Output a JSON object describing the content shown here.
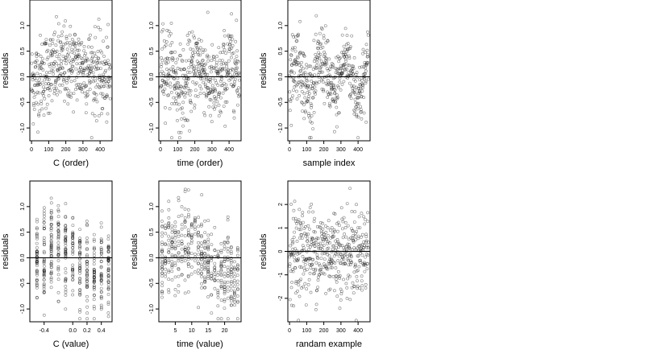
{
  "chart_data": [
    {
      "type": "scatter",
      "xlabel": "C (order)",
      "ylabel": "residuals",
      "xlim": [
        -10,
        470
      ],
      "ylim": [
        -1.25,
        1.5
      ],
      "xticks": [
        0,
        100,
        200,
        300,
        400
      ],
      "xtick_labels": [
        "0",
        "100",
        "200",
        "300",
        "400"
      ],
      "yticks": [
        -1.0,
        -0.5,
        0.0,
        0.5,
        1.0
      ],
      "ytick_labels": [
        "-1.0",
        "-0.5",
        "0.0",
        "0.5",
        "1.0"
      ],
      "hline": 0,
      "pattern": "hump",
      "n_points": 460,
      "x_range": [
        0,
        460
      ]
    },
    {
      "type": "scatter",
      "xlabel": "time (order)",
      "ylabel": "residuals",
      "xlim": [
        -10,
        470
      ],
      "ylim": [
        -1.25,
        1.5
      ],
      "xticks": [
        0,
        100,
        200,
        300,
        400
      ],
      "xtick_labels": [
        "0",
        "100",
        "200",
        "300",
        "400"
      ],
      "yticks": [
        -1.0,
        -0.5,
        0.0,
        0.5,
        1.0
      ],
      "ytick_labels": [
        "-1.0",
        "-0.5",
        "0.0",
        "0.5",
        "1.0"
      ],
      "hline": 0,
      "pattern": "wave",
      "n_points": 460,
      "x_range": [
        0,
        460
      ]
    },
    {
      "type": "scatter",
      "xlabel": "sample index",
      "ylabel": "residuals",
      "xlim": [
        -10,
        470
      ],
      "ylim": [
        -1.25,
        1.5
      ],
      "xticks": [
        0,
        100,
        200,
        300,
        400
      ],
      "xtick_labels": [
        "0",
        "100",
        "200",
        "300",
        "400"
      ],
      "yticks": [
        -1.0,
        -0.5,
        0.0,
        0.5,
        1.0
      ],
      "ytick_labels": [
        "-1.0",
        "-0.5",
        "0.0",
        "0.5",
        "1.0"
      ],
      "hline": 0,
      "pattern": "cycles",
      "n_points": 460,
      "x_range": [
        0,
        460
      ]
    },
    {
      "type": "scatter",
      "xlabel": "C (value)",
      "ylabel": "residuals",
      "xlim": [
        -0.6,
        0.55
      ],
      "ylim": [
        -1.25,
        1.5
      ],
      "xticks": [
        -0.4,
        0.0,
        0.2,
        0.4
      ],
      "xtick_labels": [
        "-0.4",
        "0.0",
        "0.2",
        "0.4"
      ],
      "yticks": [
        -1.0,
        -0.5,
        0.0,
        0.5,
        1.0
      ],
      "ytick_labels": [
        "-1.0",
        "-0.5",
        "0.0",
        "0.5",
        "1.0"
      ],
      "hline": 0,
      "pattern": "columns",
      "columns": [
        -0.5,
        -0.4,
        -0.3,
        -0.2,
        -0.1,
        0.0,
        0.1,
        0.2,
        0.3,
        0.4,
        0.5
      ],
      "n_points": 460
    },
    {
      "type": "scatter",
      "xlabel": "time (value)",
      "ylabel": "residuals",
      "xlim": [
        0,
        25
      ],
      "ylim": [
        -1.25,
        1.5
      ],
      "xticks": [
        5,
        10,
        15,
        20
      ],
      "xtick_labels": [
        "5",
        "10",
        "15",
        "20"
      ],
      "yticks": [
        -1.0,
        -0.5,
        0.0,
        0.5,
        1.0
      ],
      "ytick_labels": [
        "-1.0",
        "-0.5",
        "0.0",
        "0.5",
        "1.0"
      ],
      "hline": 0,
      "pattern": "columns",
      "columns": [
        1,
        2,
        3,
        4,
        5,
        6,
        7,
        8,
        9,
        10,
        11,
        12,
        13,
        14,
        15,
        16,
        17,
        18,
        19,
        20,
        21,
        22,
        23,
        24
      ],
      "n_points": 460
    },
    {
      "type": "scatter",
      "xlabel": "randam example",
      "ylabel": "residuals",
      "xlim": [
        -10,
        470
      ],
      "ylim": [
        -3,
        3
      ],
      "xticks": [
        0,
        100,
        200,
        300,
        400
      ],
      "xtick_labels": [
        "0",
        "100",
        "200",
        "300",
        "400"
      ],
      "yticks": [
        -2,
        -1,
        0,
        1,
        2
      ],
      "ytick_labels": [
        "-2",
        "-1",
        "0",
        "1",
        "2"
      ],
      "hline": 0,
      "pattern": "random",
      "n_points": 460,
      "x_range": [
        0,
        460
      ]
    }
  ]
}
